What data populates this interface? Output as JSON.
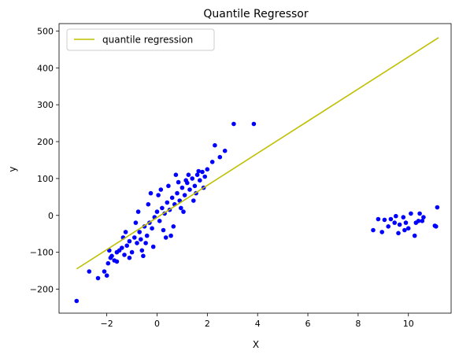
{
  "chart_data": {
    "type": "scatter",
    "title": "Quantile Regressor",
    "xlabel": "X",
    "ylabel": "y",
    "xlim": [
      -3.9,
      11.7
    ],
    "ylim": [
      -265,
      520
    ],
    "grid": false,
    "legend_position": "top-left",
    "x_ticks": [
      -2,
      0,
      2,
      4,
      6,
      8,
      10
    ],
    "x_tick_labels": [
      "−2",
      "0",
      "2",
      "4",
      "6",
      "8",
      "10"
    ],
    "y_ticks": [
      -200,
      -100,
      0,
      100,
      200,
      300,
      400,
      500
    ],
    "y_tick_labels": [
      "−200",
      "−100",
      "0",
      "100",
      "200",
      "300",
      "400",
      "500"
    ],
    "series": [
      {
        "kind": "line",
        "name": "quantile regression",
        "color": "#bfbf00",
        "x": [
          -3.2,
          11.2
        ],
        "y": [
          -145,
          482
        ]
      },
      {
        "kind": "scatter",
        "color": "#0000ff",
        "points": [
          [
            -3.2,
            -232
          ],
          [
            -2.7,
            -152
          ],
          [
            -2.35,
            -170
          ],
          [
            -2.1,
            -152
          ],
          [
            -2.0,
            -163
          ],
          [
            -1.95,
            -130
          ],
          [
            -1.85,
            -115
          ],
          [
            -1.8,
            -110
          ],
          [
            -1.7,
            -122
          ],
          [
            -1.6,
            -100
          ],
          [
            -1.5,
            -95
          ],
          [
            -1.4,
            -88
          ],
          [
            -1.3,
            -107
          ],
          [
            -1.2,
            -82
          ],
          [
            -1.1,
            -70
          ],
          [
            -1.0,
            -100
          ],
          [
            -0.9,
            -60
          ],
          [
            -0.8,
            -75
          ],
          [
            -0.7,
            -45
          ],
          [
            -0.6,
            -95
          ],
          [
            -0.5,
            -30
          ],
          [
            -0.4,
            -55
          ],
          [
            -0.3,
            -20
          ],
          [
            -0.2,
            -35
          ],
          [
            -0.1,
            -5
          ],
          [
            0.0,
            10
          ],
          [
            0.1,
            -15
          ],
          [
            0.2,
            20
          ],
          [
            0.3,
            5
          ],
          [
            0.4,
            35
          ],
          [
            0.5,
            15
          ],
          [
            0.6,
            48
          ],
          [
            0.7,
            30
          ],
          [
            0.8,
            60
          ],
          [
            0.9,
            40
          ],
          [
            1.0,
            75
          ],
          [
            1.1,
            55
          ],
          [
            1.2,
            88
          ],
          [
            1.3,
            70
          ],
          [
            1.4,
            100
          ],
          [
            1.5,
            80
          ],
          [
            1.6,
            110
          ],
          [
            1.7,
            95
          ],
          [
            1.8,
            118
          ],
          [
            1.9,
            105
          ],
          [
            2.0,
            125
          ],
          [
            2.2,
            145
          ],
          [
            2.3,
            190
          ],
          [
            2.5,
            158
          ],
          [
            2.7,
            175
          ],
          [
            3.05,
            248
          ],
          [
            3.85,
            248
          ],
          [
            -1.6,
            -125
          ],
          [
            -1.35,
            -60
          ],
          [
            -1.1,
            -115
          ],
          [
            -0.85,
            -20
          ],
          [
            -0.55,
            -110
          ],
          [
            -0.35,
            30
          ],
          [
            -0.15,
            -85
          ],
          [
            0.05,
            55
          ],
          [
            0.25,
            -40
          ],
          [
            0.45,
            80
          ],
          [
            0.65,
            -30
          ],
          [
            0.85,
            90
          ],
          [
            1.05,
            10
          ],
          [
            1.25,
            110
          ],
          [
            1.45,
            40
          ],
          [
            1.65,
            120
          ],
          [
            1.85,
            75
          ],
          [
            -0.75,
            10
          ],
          [
            0.15,
            70
          ],
          [
            0.55,
            -55
          ],
          [
            -1.9,
            -95
          ],
          [
            -0.25,
            60
          ],
          [
            0.75,
            110
          ],
          [
            -0.45,
            -75
          ],
          [
            1.15,
            95
          ],
          [
            0.35,
            -60
          ],
          [
            -1.25,
            -45
          ],
          [
            0.95,
            20
          ],
          [
            -0.65,
            -65
          ],
          [
            1.55,
            60
          ],
          [
            8.6,
            -40
          ],
          [
            8.8,
            -10
          ],
          [
            8.95,
            -45
          ],
          [
            9.05,
            -12
          ],
          [
            9.3,
            -10
          ],
          [
            9.45,
            -20
          ],
          [
            9.6,
            -48
          ],
          [
            9.65,
            -25
          ],
          [
            9.8,
            -5
          ],
          [
            9.85,
            -40
          ],
          [
            9.9,
            -20
          ],
          [
            10.0,
            -35
          ],
          [
            10.1,
            5
          ],
          [
            10.25,
            -55
          ],
          [
            10.3,
            -20
          ],
          [
            10.4,
            -15
          ],
          [
            10.45,
            5
          ],
          [
            10.55,
            -15
          ],
          [
            11.1,
            -30
          ],
          [
            11.15,
            22
          ],
          [
            9.5,
            -2
          ],
          [
            10.6,
            -5
          ],
          [
            11.05,
            -28
          ],
          [
            9.2,
            -30
          ]
        ]
      }
    ]
  }
}
